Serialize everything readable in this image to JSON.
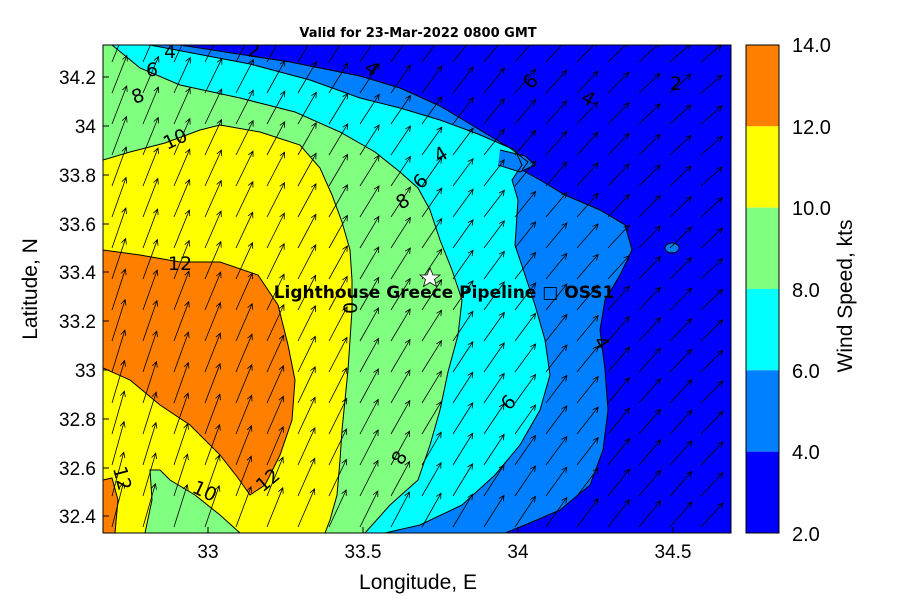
{
  "title": "Valid for 23-Mar-2022 0800 GMT",
  "x_label": "Longitude, E",
  "y_label": "Latitude, N",
  "x_ticks": [
    "33",
    "33.5",
    "34",
    "34.5"
  ],
  "y_ticks": [
    "34.2",
    "34",
    "33.8",
    "33.6",
    "33.4",
    "33.2",
    "33",
    "32.8",
    "32.6",
    "32.4"
  ],
  "colorbar": {
    "label": "Wind Speed, kts",
    "ticks": [
      "14.0",
      "12.0",
      "10.0",
      "8.0",
      "6.0",
      "4.0",
      "2.0"
    ],
    "band_colors": [
      "#ff8000",
      "#ffff00",
      "#80ff80",
      "#00ffff",
      "#0080ff",
      "#0000ff"
    ]
  },
  "contour_labels": [
    "2",
    "4",
    "6",
    "8",
    "10",
    "4",
    "2",
    "6",
    "4",
    "6",
    "4",
    "8",
    "10",
    "12",
    "0",
    "4",
    "6",
    "8",
    "12",
    "10",
    "12"
  ],
  "site": {
    "label": "Lighthouse Greece Pipeline □ OSS1",
    "lon": 33.7,
    "lat": 33.38
  },
  "chart_data": {
    "type": "heatmap",
    "title": "Valid for 23-Mar-2022 0800 GMT",
    "xlabel": "Longitude, E",
    "ylabel": "Latitude, N",
    "xlim": [
      32.64,
      34.68
    ],
    "ylim": [
      32.33,
      34.33
    ],
    "levels": [
      2,
      4,
      6,
      8,
      10,
      12,
      14
    ],
    "colorbar_label": "Wind Speed, kts",
    "wind_vectors": "wind arrows on a regular grid pointing roughly north-east",
    "site": {
      "name": "Lighthouse Greece Pipeline □ OSS1",
      "lon": 33.7,
      "lat": 33.38
    }
  },
  "colors": {
    "band_2_4": "#0000ff",
    "band_4_6": "#0080ff",
    "band_6_8": "#00ffff",
    "band_8_10": "#80ff80",
    "band_10_12": "#ffff00",
    "band_12_14": "#ff8000"
  }
}
